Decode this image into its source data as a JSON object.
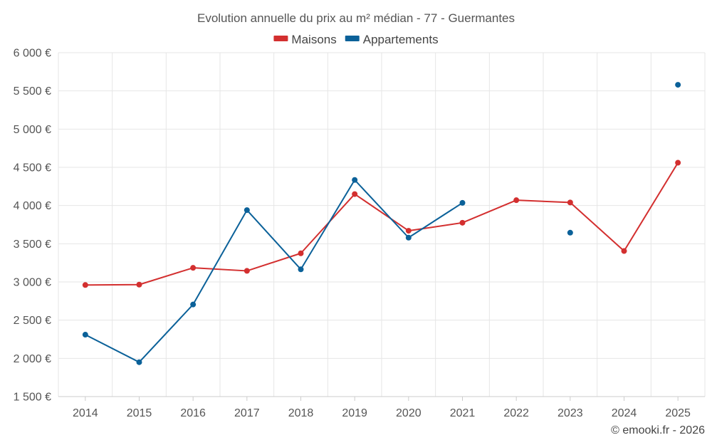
{
  "chart_data": {
    "type": "line",
    "title": "Evolution annuelle du prix au m² médian - 77 - Guermantes",
    "categories": [
      "2014",
      "2015",
      "2016",
      "2017",
      "2018",
      "2019",
      "2020",
      "2021",
      "2022",
      "2023",
      "2024",
      "2025"
    ],
    "series": [
      {
        "name": "Maisons",
        "color": "#d32f2f",
        "values": [
          2960,
          2965,
          3185,
          3145,
          3375,
          4150,
          3670,
          3775,
          4070,
          4040,
          3405,
          4560
        ]
      },
      {
        "name": "Appartements",
        "color": "#0b6199",
        "values": [
          2310,
          1950,
          2705,
          3940,
          3165,
          4335,
          3580,
          4035,
          null,
          3645,
          null,
          5580
        ]
      }
    ],
    "ylim": [
      1500,
      6000
    ],
    "yticks": [
      1500,
      2000,
      2500,
      3000,
      3500,
      4000,
      4500,
      5000,
      5500,
      6000
    ],
    "ytick_labels": [
      "1 500 €",
      "2 000 €",
      "2 500 €",
      "3 000 €",
      "3 500 €",
      "4 000 €",
      "4 500 €",
      "5 000 €",
      "5 500 €",
      "6 000 €"
    ],
    "xlabel": "",
    "ylabel": "",
    "legend_position": "top-center",
    "grid": true,
    "credit": "© emooki.fr - 2026"
  }
}
